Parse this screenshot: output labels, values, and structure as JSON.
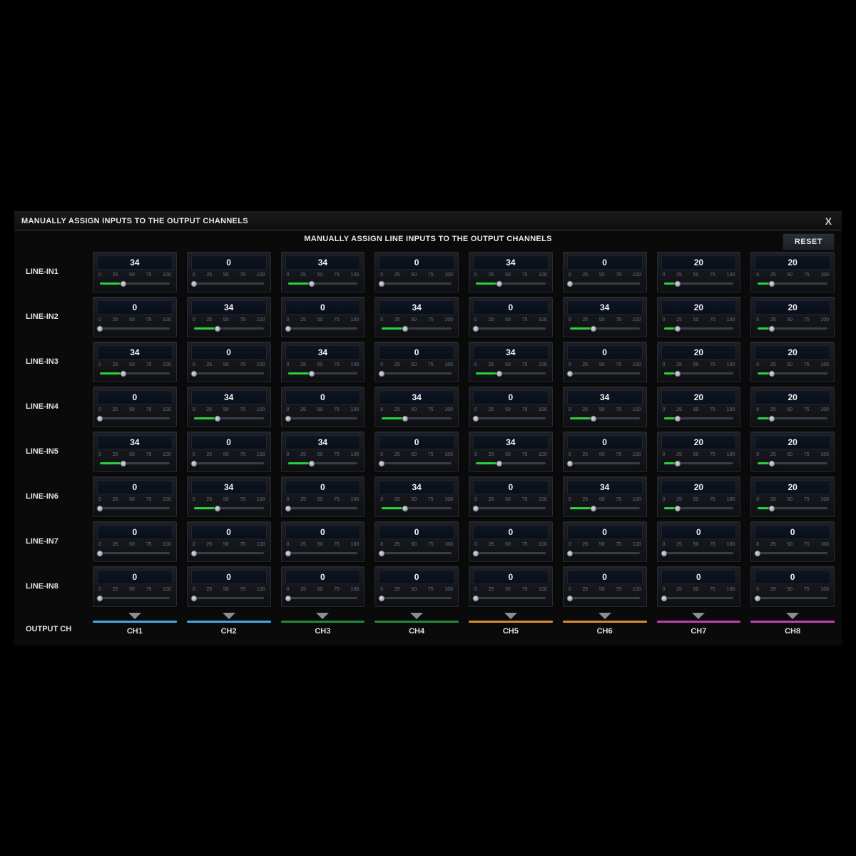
{
  "title": "MANUALLY ASSIGN INPUTS TO THE OUTPUT CHANNELS",
  "subtitle": "MANUALLY ASSIGN LINE INPUTS TO THE OUTPUT CHANNELS",
  "close_label": "X",
  "reset_label": "RESET",
  "output_header": "OUTPUT CH",
  "tick_labels": [
    "0",
    "25",
    "50",
    "75",
    "100"
  ],
  "slider": {
    "min": 0,
    "max": 100,
    "fill_color_active": "#2bd23a",
    "fill_color_zero": "#3a3d44",
    "track_color": "#3a3d44",
    "thumb_color": "#b8bcc4"
  },
  "cell_bg": "#14161c",
  "value_box_bg": "#0b121d",
  "panel_bg": "#0a0a0a",
  "text_color": "#e8e8e8",
  "input_rows": [
    {
      "label": "LINE-IN1",
      "values": [
        34,
        0,
        34,
        0,
        34,
        0,
        20,
        20
      ]
    },
    {
      "label": "LINE-IN2",
      "values": [
        0,
        34,
        0,
        34,
        0,
        34,
        20,
        20
      ]
    },
    {
      "label": "LINE-IN3",
      "values": [
        34,
        0,
        34,
        0,
        34,
        0,
        20,
        20
      ]
    },
    {
      "label": "LINE-IN4",
      "values": [
        0,
        34,
        0,
        34,
        0,
        34,
        20,
        20
      ]
    },
    {
      "label": "LINE-IN5",
      "values": [
        34,
        0,
        34,
        0,
        34,
        0,
        20,
        20
      ]
    },
    {
      "label": "LINE-IN6",
      "values": [
        0,
        34,
        0,
        34,
        0,
        34,
        20,
        20
      ]
    },
    {
      "label": "LINE-IN7",
      "values": [
        0,
        0,
        0,
        0,
        0,
        0,
        0,
        0
      ]
    },
    {
      "label": "LINE-IN8",
      "values": [
        0,
        0,
        0,
        0,
        0,
        0,
        0,
        0
      ]
    }
  ],
  "output_channels": [
    {
      "label": "CH1",
      "color": "#3fa9e0"
    },
    {
      "label": "CH2",
      "color": "#3fa9e0"
    },
    {
      "label": "CH3",
      "color": "#1e8a3a"
    },
    {
      "label": "CH4",
      "color": "#1e8a3a"
    },
    {
      "label": "CH5",
      "color": "#d98a2a"
    },
    {
      "label": "CH6",
      "color": "#d98a2a"
    },
    {
      "label": "CH7",
      "color": "#c23fb0"
    },
    {
      "label": "CH8",
      "color": "#c23fb0"
    }
  ]
}
